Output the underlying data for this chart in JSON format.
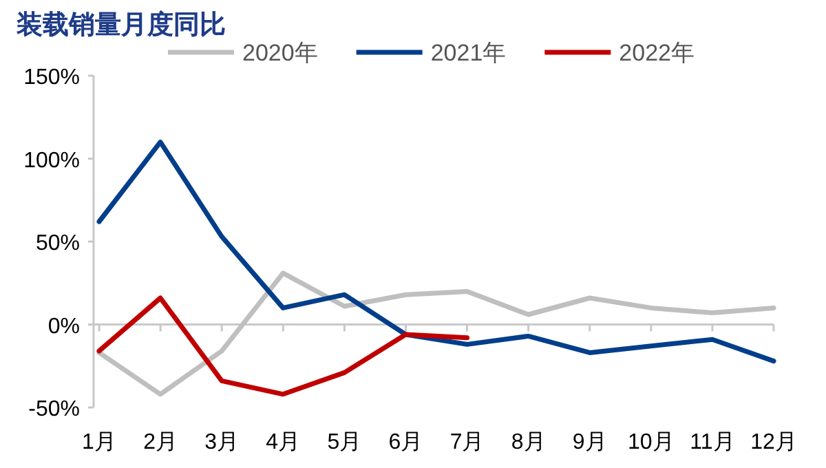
{
  "chart_data": {
    "type": "line",
    "title": "装载销量月度同比",
    "categories": [
      "1月",
      "2月",
      "3月",
      "4月",
      "5月",
      "6月",
      "7月",
      "8月",
      "9月",
      "10月",
      "11月",
      "12月"
    ],
    "series": [
      {
        "name": "2020年",
        "color": "#bfbfbf",
        "values": [
          -17,
          -42,
          -16,
          31,
          11,
          18,
          20,
          6,
          16,
          10,
          7,
          10
        ]
      },
      {
        "name": "2021年",
        "color": "#023e8a",
        "values": [
          62,
          110,
          53,
          10,
          18,
          -6,
          -12,
          -7,
          -17,
          -13,
          -9,
          -22
        ]
      },
      {
        "name": "2022年",
        "color": "#c00000",
        "values": [
          -16,
          16,
          -34,
          -42,
          -29,
          -6,
          -8,
          null,
          null,
          null,
          null,
          null
        ]
      }
    ],
    "ylim": [
      -50,
      150
    ],
    "yticks": [
      {
        "value": -50,
        "label": "-50%"
      },
      {
        "value": 0,
        "label": "0%"
      },
      {
        "value": 50,
        "label": "50%"
      },
      {
        "value": 100,
        "label": "100%"
      },
      {
        "value": 150,
        "label": "150%"
      }
    ],
    "legend": "top",
    "marker": "none",
    "line_style": "solid"
  }
}
